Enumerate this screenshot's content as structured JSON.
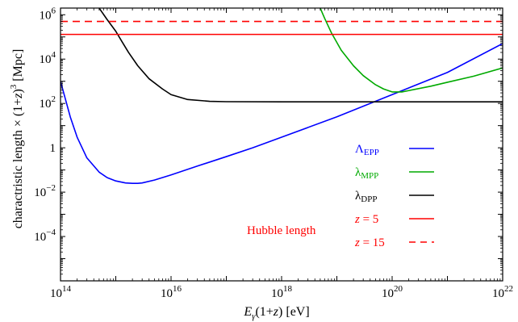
{
  "chart_data": {
    "type": "line",
    "title": "",
    "xlabel": "E_γ(1+z) [eV]",
    "ylabel": "charactristic length × (1+z)^3 [Mpc]",
    "x_scale": "log",
    "y_scale": "log",
    "xlim": [
      100000000000000.0,
      1e+22
    ],
    "ylim": [
      1e-06,
      2000000.0
    ],
    "grid": false,
    "legend_position": "lower-right",
    "x_ticks": [
      {
        "value": 100000000000000.0,
        "base": "10",
        "exp": "14"
      },
      {
        "value": 1e+16,
        "base": "10",
        "exp": "16"
      },
      {
        "value": 1e+18,
        "base": "10",
        "exp": "18"
      },
      {
        "value": 1e+20,
        "base": "10",
        "exp": "20"
      },
      {
        "value": 1e+22,
        "base": "10",
        "exp": "22"
      }
    ],
    "y_ticks": [
      {
        "value": 0.0001,
        "base": "10",
        "exp": "−4"
      },
      {
        "value": 0.01,
        "base": "10",
        "exp": "−2"
      },
      {
        "value": 1,
        "base": "1",
        "exp": ""
      },
      {
        "value": 100.0,
        "base": "10",
        "exp": "2"
      },
      {
        "value": 10000.0,
        "base": "10",
        "exp": "4"
      },
      {
        "value": 1000000.0,
        "base": "10",
        "exp": "6"
      }
    ],
    "series": [
      {
        "name": "Λ_EPP",
        "label_main": "Λ",
        "label_sub": "EPP",
        "color": "#0000ff",
        "dash": "solid",
        "x": [
          100000000000000.0,
          150000000000000.0,
          200000000000000.0,
          300000000000000.0,
          500000000000000.0,
          700000000000000.0,
          1000000000000000.0,
          1500000000000000.0,
          2000000000000000.0,
          2500000000000000.0,
          3000000000000000.0,
          5000000000000000.0,
          1e+16,
          3e+16,
          1e+17,
          3e+17,
          1e+18,
          1e+19,
          1e+20,
          1e+21,
          1e+22
        ],
        "y": [
          1000,
          25,
          3,
          0.35,
          0.08,
          0.045,
          0.032,
          0.026,
          0.025,
          0.025,
          0.026,
          0.035,
          0.06,
          0.15,
          0.4,
          1,
          3,
          25,
          250,
          2500,
          50000
        ]
      },
      {
        "name": "λ_MPP",
        "label_main": "λ",
        "label_sub": "MPP",
        "color": "#00aa00",
        "dash": "solid",
        "x": [
          5e+18,
          6e+18,
          8e+18,
          1.2e+19,
          2e+19,
          3e+19,
          5e+19,
          7e+19,
          1e+20,
          1.5e+20,
          2e+20,
          5e+20,
          1e+21,
          3e+21,
          1e+22
        ],
        "y": [
          2000000,
          700000,
          150000,
          25000,
          5000,
          1800,
          700,
          450,
          330,
          330,
          380,
          600,
          900,
          1700,
          4000
        ]
      },
      {
        "name": "λ_DPP",
        "label_main": "λ",
        "label_sub": "DPP",
        "color": "#000000",
        "dash": "solid",
        "x": [
          500000000000000.0,
          700000000000000.0,
          1000000000000000.0,
          1300000000000000.0,
          1700000000000000.0,
          2500000000000000.0,
          4000000000000000.0,
          7000000000000000.0,
          1e+16,
          2e+16,
          5e+16,
          1e+17,
          1e+18,
          1e+20,
          1e+22
        ],
        "y": [
          2000000,
          600000,
          180000,
          60000,
          20000,
          5000,
          1300,
          450,
          250,
          150,
          125,
          120,
          118,
          118,
          118
        ]
      },
      {
        "name": "z = 5",
        "label_main": "z",
        "label_rest": " = 5",
        "color": "#ff0000",
        "dash": "solid",
        "x": [
          100000000000000.0,
          1e+22
        ],
        "y": [
          130000,
          130000
        ]
      },
      {
        "name": "z = 15",
        "label_main": "z",
        "label_rest": " = 15",
        "color": "#ff0000",
        "dash": "dashed",
        "x": [
          100000000000000.0,
          1e+22
        ],
        "y": [
          500000,
          500000
        ]
      }
    ],
    "annotations": [
      {
        "text": "Hubble length",
        "color": "#ff0000"
      }
    ]
  }
}
